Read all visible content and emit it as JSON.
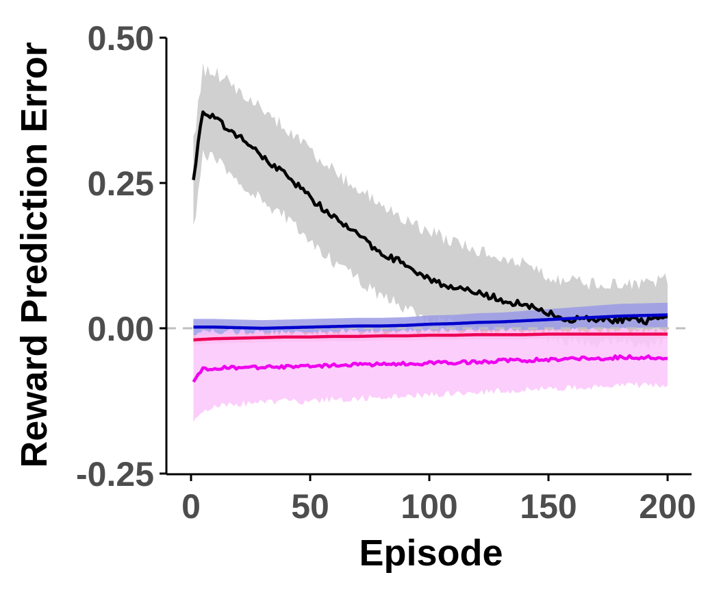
{
  "chart_data": {
    "type": "line",
    "title": "",
    "xlabel": "Episode",
    "ylabel": "Reward Prediction Error",
    "xlim": [
      -8,
      210
    ],
    "ylim": [
      -0.25,
      0.5
    ],
    "x_ticks": [
      0,
      50,
      100,
      150,
      200
    ],
    "x_tick_labels": [
      "0",
      "50",
      "100",
      "150",
      "200"
    ],
    "y_ticks": [
      -0.25,
      0,
      0.25,
      0.5
    ],
    "y_tick_labels": [
      "-0.25",
      "0.00",
      "0.25",
      "0.50"
    ],
    "reference_line": {
      "y": 0,
      "style": "dashed",
      "color": "#bfbfbf"
    },
    "grid": false,
    "legend": "none",
    "x": [
      1,
      5,
      10,
      20,
      30,
      40,
      50,
      60,
      70,
      80,
      90,
      100,
      110,
      120,
      130,
      140,
      150,
      160,
      170,
      180,
      190,
      200
    ],
    "series": [
      {
        "color": "#000000",
        "band_color": "#c8c8c8",
        "noise": 0.012,
        "values": [
          0.26,
          0.375,
          0.36,
          0.33,
          0.295,
          0.265,
          0.225,
          0.19,
          0.16,
          0.13,
          0.11,
          0.085,
          0.07,
          0.06,
          0.05,
          0.04,
          0.025,
          0.015,
          0.015,
          0.015,
          0.012,
          0.015
        ],
        "lower": [
          0.17,
          0.3,
          0.29,
          0.255,
          0.22,
          0.19,
          0.15,
          0.115,
          0.085,
          0.055,
          0.035,
          0.015,
          0.005,
          0.0,
          -0.005,
          -0.01,
          -0.015,
          -0.02,
          -0.025,
          -0.025,
          -0.025,
          -0.02
        ],
        "upper": [
          0.32,
          0.445,
          0.44,
          0.41,
          0.375,
          0.345,
          0.305,
          0.27,
          0.24,
          0.21,
          0.19,
          0.165,
          0.15,
          0.135,
          0.12,
          0.11,
          0.09,
          0.08,
          0.075,
          0.075,
          0.075,
          0.085
        ]
      },
      {
        "color": "#0000cc",
        "band_color": "#9a9ae6",
        "noise": 0.0,
        "values": [
          0.002,
          0.002,
          0.002,
          0.001,
          0.0,
          0.001,
          0.002,
          0.003,
          0.004,
          0.004,
          0.005,
          0.007,
          0.008,
          0.01,
          0.011,
          0.013,
          0.015,
          0.017,
          0.019,
          0.021,
          0.022,
          0.023
        ],
        "lower": [
          -0.012,
          -0.012,
          -0.012,
          -0.013,
          -0.014,
          -0.013,
          -0.012,
          -0.011,
          -0.01,
          -0.01,
          -0.009,
          -0.008,
          -0.007,
          -0.006,
          -0.005,
          -0.004,
          -0.003,
          -0.002,
          -0.001,
          0.0,
          0.001,
          0.002
        ],
        "upper": [
          0.016,
          0.016,
          0.016,
          0.015,
          0.014,
          0.015,
          0.016,
          0.017,
          0.018,
          0.018,
          0.019,
          0.022,
          0.023,
          0.026,
          0.027,
          0.03,
          0.033,
          0.036,
          0.039,
          0.042,
          0.043,
          0.044
        ]
      },
      {
        "color": "#ee0055",
        "band_color": "#f6a9c5",
        "noise": 0.0,
        "values": [
          -0.02,
          -0.019,
          -0.018,
          -0.017,
          -0.016,
          -0.015,
          -0.015,
          -0.014,
          -0.014,
          -0.013,
          -0.013,
          -0.012,
          -0.012,
          -0.011,
          -0.011,
          -0.011,
          -0.01,
          -0.01,
          -0.01,
          -0.01,
          -0.01,
          -0.01
        ],
        "lower": [
          -0.028,
          -0.027,
          -0.026,
          -0.025,
          -0.024,
          -0.023,
          -0.023,
          -0.022,
          -0.022,
          -0.021,
          -0.021,
          -0.02,
          -0.02,
          -0.019,
          -0.019,
          -0.019,
          -0.018,
          -0.018,
          -0.018,
          -0.018,
          -0.018,
          -0.018
        ],
        "upper": [
          -0.012,
          -0.011,
          -0.01,
          -0.009,
          -0.008,
          -0.007,
          -0.007,
          -0.006,
          -0.006,
          -0.005,
          -0.005,
          -0.004,
          -0.004,
          -0.003,
          -0.003,
          -0.003,
          -0.002,
          -0.002,
          -0.002,
          -0.002,
          -0.002,
          -0.002
        ]
      },
      {
        "color": "#ee00ee",
        "band_color": "#fbc6fb",
        "noise": 0.006,
        "values": [
          -0.09,
          -0.07,
          -0.068,
          -0.068,
          -0.067,
          -0.067,
          -0.066,
          -0.064,
          -0.063,
          -0.062,
          -0.061,
          -0.06,
          -0.059,
          -0.058,
          -0.056,
          -0.055,
          -0.054,
          -0.053,
          -0.052,
          -0.05,
          -0.05,
          -0.052
        ],
        "lower": [
          -0.16,
          -0.14,
          -0.135,
          -0.13,
          -0.128,
          -0.126,
          -0.125,
          -0.122,
          -0.12,
          -0.118,
          -0.116,
          -0.114,
          -0.112,
          -0.11,
          -0.108,
          -0.106,
          -0.104,
          -0.102,
          -0.1,
          -0.098,
          -0.098,
          -0.1
        ],
        "upper": [
          -0.02,
          -0.005,
          -0.005,
          -0.006,
          -0.007,
          -0.008,
          -0.008,
          -0.007,
          -0.006,
          -0.006,
          -0.006,
          -0.006,
          -0.005,
          -0.005,
          -0.004,
          -0.004,
          -0.004,
          -0.004,
          -0.004,
          -0.003,
          -0.003,
          -0.004
        ]
      }
    ]
  }
}
